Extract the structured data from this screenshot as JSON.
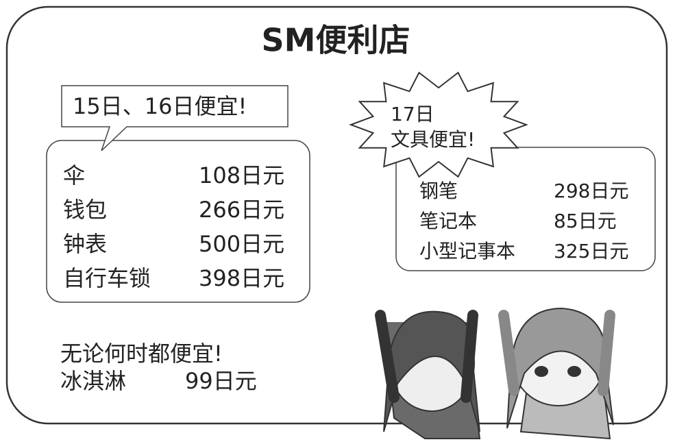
{
  "header": {
    "title": "SM便利店"
  },
  "left_panel": {
    "callout": "15日、16日便宜!",
    "items": [
      {
        "name": "伞",
        "price": "108日元"
      },
      {
        "name": "钱包",
        "price": "266日元"
      },
      {
        "name": "钟表",
        "price": "500日元"
      },
      {
        "name": "自行车锁",
        "price": "398日元"
      }
    ]
  },
  "right_panel": {
    "callout": [
      "17日",
      "文具便宜!"
    ],
    "items": [
      {
        "name": "钢笔",
        "price": "298日元"
      },
      {
        "name": "笔记本",
        "price": "85日元"
      },
      {
        "name": "小型记事本",
        "price": "325日元"
      }
    ]
  },
  "footer": {
    "note": "无论何时都便宜!",
    "item": {
      "name": "冰淇淋",
      "price": "99日元"
    }
  }
}
